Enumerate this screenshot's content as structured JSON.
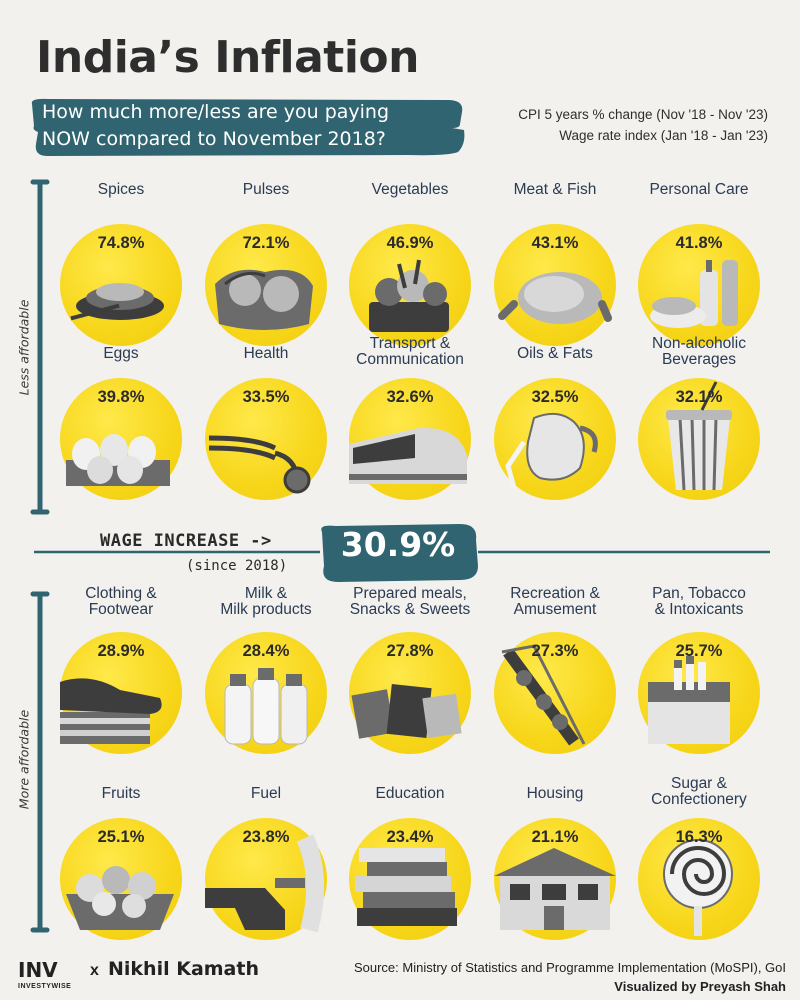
{
  "title": "India’s Inflation",
  "banner": {
    "line1": "How much more/less are you paying",
    "line2": "NOW compared to November 2018?"
  },
  "notes": {
    "cpi": "CPI 5 years % change (Nov '18 - Nov '23)",
    "wage": "Wage rate index (Jan '18 - Jan '23)"
  },
  "sections": {
    "upper": "Less affordable",
    "lower": "More affordable"
  },
  "wage": {
    "label": "WAGE INCREASE ->",
    "since": "(since 2018)",
    "value": "30.9%"
  },
  "items": [
    {
      "label": "Spices",
      "pct": "74.8%",
      "icon": "spices-icon"
    },
    {
      "label": "Pulses",
      "pct": "72.1%",
      "icon": "pulses-icon"
    },
    {
      "label": "Vegetables",
      "pct": "46.9%",
      "icon": "vegetables-icon"
    },
    {
      "label": "Meat & Fish",
      "pct": "43.1%",
      "icon": "meat-icon"
    },
    {
      "label": "Personal Care",
      "pct": "41.8%",
      "icon": "personal-care-icon"
    },
    {
      "label": "Eggs",
      "pct": "39.8%",
      "icon": "eggs-icon"
    },
    {
      "label": "Health",
      "pct": "33.5%",
      "icon": "stethoscope-icon"
    },
    {
      "label": "Transport &\nCommunication",
      "pct": "32.6%",
      "icon": "train-icon"
    },
    {
      "label": "Oils & Fats",
      "pct": "32.5%",
      "icon": "oil-jug-icon"
    },
    {
      "label": "Non-alcoholic\nBeverages",
      "pct": "32.1%",
      "icon": "drink-cup-icon"
    },
    {
      "label": "Clothing &\nFootwear",
      "pct": "28.9%",
      "icon": "shoes-icon"
    },
    {
      "label": "Milk &\nMilk products",
      "pct": "28.4%",
      "icon": "milk-bottles-icon"
    },
    {
      "label": "Prepared meals,\nSnacks & Sweets",
      "pct": "27.8%",
      "icon": "snacks-icon"
    },
    {
      "label": "Recreation &\nAmusement",
      "pct": "27.3%",
      "icon": "ride-icon"
    },
    {
      "label": "Pan, Tobacco\n& Intoxicants",
      "pct": "25.7%",
      "icon": "cigarettes-icon"
    },
    {
      "label": "Fruits",
      "pct": "25.1%",
      "icon": "fruit-basket-icon"
    },
    {
      "label": "Fuel",
      "pct": "23.8%",
      "icon": "fuel-nozzle-icon"
    },
    {
      "label": "Education",
      "pct": "23.4%",
      "icon": "books-icon"
    },
    {
      "label": "Housing",
      "pct": "21.1%",
      "icon": "house-icon"
    },
    {
      "label": "Sugar &\nConfectionery",
      "pct": "16.3%",
      "icon": "lollipop-icon"
    }
  ],
  "chart_data": {
    "type": "bar",
    "title": "India’s Inflation",
    "categories": [
      "Spices",
      "Pulses",
      "Vegetables",
      "Meat & Fish",
      "Personal Care",
      "Eggs",
      "Health",
      "Transport & Communication",
      "Oils & Fats",
      "Non-alcoholic Beverages",
      "Clothing & Footwear",
      "Milk & Milk products",
      "Prepared meals, Snacks & Sweets",
      "Recreation & Amusement",
      "Pan, Tobacco & Intoxicants",
      "Fruits",
      "Fuel",
      "Education",
      "Housing",
      "Sugar & Confectionery"
    ],
    "values": [
      74.8,
      72.1,
      46.9,
      43.1,
      41.8,
      39.8,
      33.5,
      32.6,
      32.5,
      32.1,
      28.9,
      28.4,
      27.8,
      27.3,
      25.7,
      25.1,
      23.8,
      23.4,
      21.1,
      16.3
    ],
    "reference_line": {
      "label": "WAGE INCREASE",
      "value": 30.9
    },
    "unit": "%"
  },
  "footer": {
    "brand": "INV",
    "brand_sub": "INVESTYWISE",
    "x": "x",
    "name": "Nikhil Kamath",
    "source": "Source: Ministry of Statistics and Programme Implementation (MoSPI), GoI",
    "visualized": "Visualized by Preyash Shah"
  },
  "colors": {
    "accent": "#2f6470",
    "yellow": "#f7d61a",
    "background": "#f2f1ee"
  }
}
